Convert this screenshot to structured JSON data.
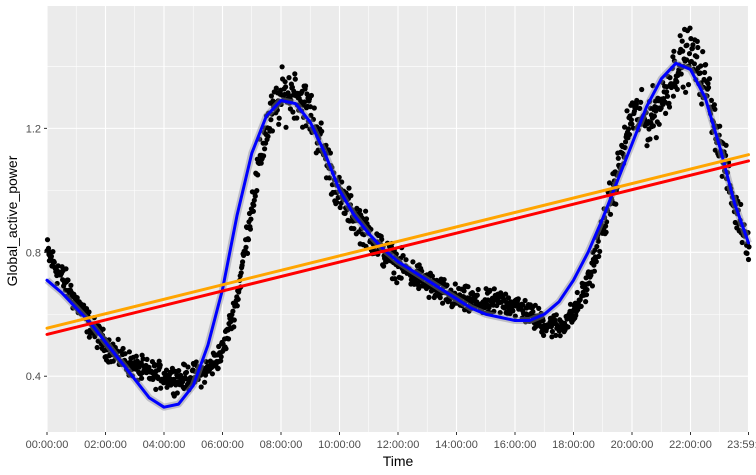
{
  "chart_data": {
    "type": "scatter",
    "title": "",
    "xlabel": "Time",
    "ylabel": "Global_active_power",
    "xlim": [
      0,
      24
    ],
    "ylim": [
      0.22,
      1.595
    ],
    "x_ticks": [
      {
        "value": 0,
        "label": "00:00:00"
      },
      {
        "value": 2,
        "label": "02:00:00"
      },
      {
        "value": 4,
        "label": "04:00:00"
      },
      {
        "value": 6,
        "label": "06:00:00"
      },
      {
        "value": 8,
        "label": "08:00:00"
      },
      {
        "value": 10,
        "label": "10:00:00"
      },
      {
        "value": 12,
        "label": "12:00:00"
      },
      {
        "value": 14,
        "label": "14:00:00"
      },
      {
        "value": 16,
        "label": "16:00:00"
      },
      {
        "value": 18,
        "label": "18:00:00"
      },
      {
        "value": 20,
        "label": "20:00:00"
      },
      {
        "value": 22,
        "label": "22:00:00"
      },
      {
        "value": 23.983,
        "label": "23:59:00"
      }
    ],
    "y_ticks": [
      {
        "value": 0.4,
        "label": "0.4"
      },
      {
        "value": 0.8,
        "label": "0.8"
      },
      {
        "value": 1.2,
        "label": "1.2"
      }
    ],
    "grid": true,
    "background": "#ebebeb",
    "point_color": "#000000",
    "scatter_profile": {
      "x": [
        0,
        0.5,
        1,
        1.5,
        2,
        2.5,
        3,
        3.5,
        4,
        4.5,
        5,
        5.5,
        6,
        6.5,
        7,
        7.5,
        8,
        8.5,
        9,
        9.5,
        10,
        10.5,
        11,
        11.5,
        12,
        12.5,
        13,
        13.5,
        14,
        14.5,
        15,
        15.5,
        16,
        16.5,
        17,
        17.5,
        18,
        18.5,
        19,
        19.5,
        20,
        20.5,
        21,
        21.5,
        22,
        22.5,
        23,
        23.5,
        23.983
      ],
      "y": [
        0.8,
        0.72,
        0.64,
        0.56,
        0.5,
        0.46,
        0.43,
        0.41,
        0.4,
        0.39,
        0.4,
        0.42,
        0.48,
        0.65,
        0.95,
        1.2,
        1.3,
        1.32,
        1.25,
        1.12,
        0.98,
        0.92,
        0.86,
        0.8,
        0.76,
        0.73,
        0.7,
        0.67,
        0.65,
        0.64,
        0.63,
        0.64,
        0.63,
        0.6,
        0.57,
        0.56,
        0.6,
        0.7,
        0.88,
        1.05,
        1.25,
        1.22,
        1.28,
        1.4,
        1.44,
        1.35,
        1.15,
        0.95,
        0.83
      ],
      "n_points": 1440
    },
    "series": [
      {
        "kind": "smooth",
        "color": "#0000ff",
        "x": [
          0,
          0.5,
          1,
          1.5,
          2,
          2.5,
          3,
          3.5,
          4,
          4.5,
          5,
          5.5,
          6,
          6.5,
          7,
          7.5,
          8,
          8.5,
          9,
          9.5,
          10,
          10.5,
          11,
          11.5,
          12,
          12.5,
          13,
          13.5,
          14,
          14.5,
          15,
          15.5,
          16,
          16.5,
          17,
          17.5,
          18,
          18.5,
          19,
          19.5,
          20,
          20.5,
          21,
          21.5,
          22,
          22.5,
          23,
          23.5,
          23.983
        ],
        "y": [
          0.71,
          0.67,
          0.62,
          0.57,
          0.51,
          0.45,
          0.39,
          0.33,
          0.3,
          0.31,
          0.37,
          0.5,
          0.68,
          0.92,
          1.12,
          1.24,
          1.29,
          1.28,
          1.22,
          1.12,
          1.0,
          0.92,
          0.86,
          0.81,
          0.77,
          0.74,
          0.71,
          0.68,
          0.65,
          0.62,
          0.6,
          0.59,
          0.58,
          0.58,
          0.6,
          0.64,
          0.71,
          0.8,
          0.91,
          1.03,
          1.15,
          1.27,
          1.36,
          1.41,
          1.39,
          1.3,
          1.14,
          0.96,
          0.83
        ]
      },
      {
        "kind": "linear",
        "color": "#ff0000",
        "x": [
          0,
          23.983
        ],
        "y": [
          0.535,
          1.095
        ]
      },
      {
        "kind": "linear",
        "color": "#ffa500",
        "x": [
          0,
          23.983
        ],
        "y": [
          0.555,
          1.115
        ]
      }
    ]
  }
}
